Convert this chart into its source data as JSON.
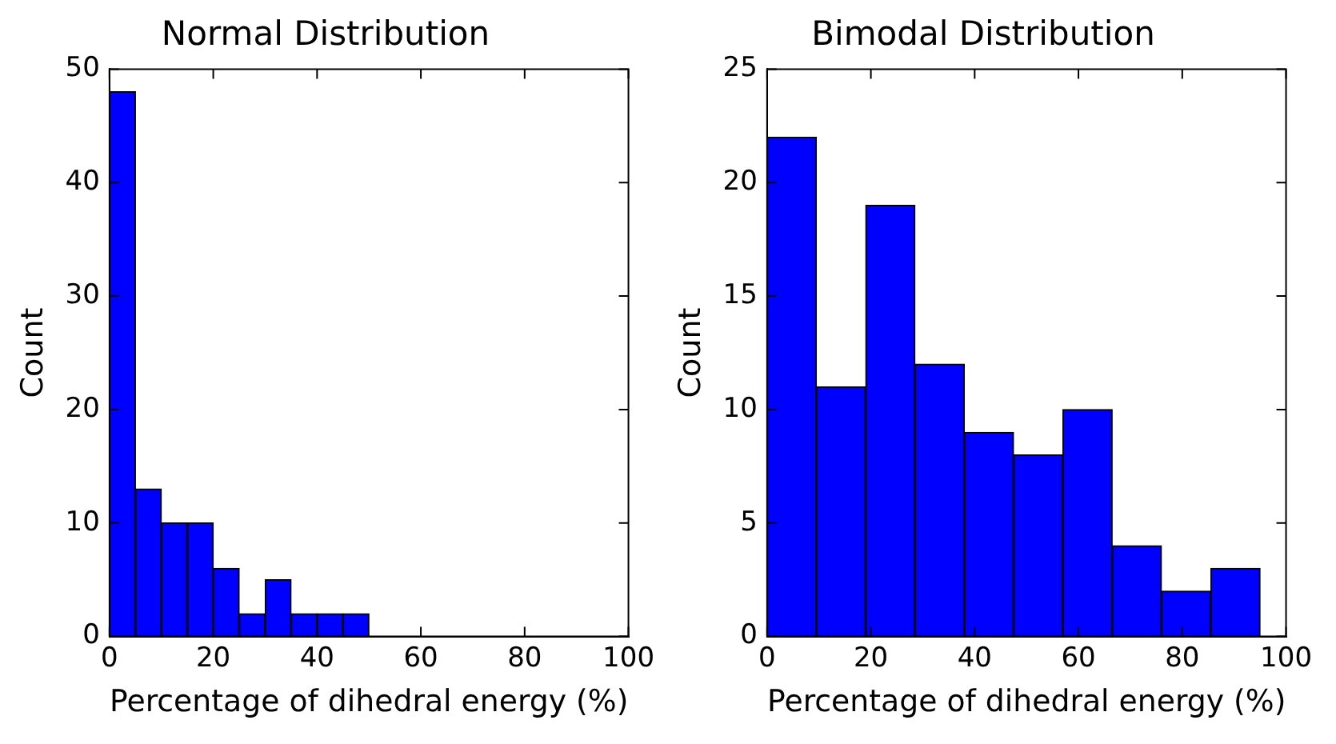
{
  "chart_data": [
    {
      "type": "histogram",
      "title": "Normal Distribution",
      "xlabel": "Percentage of dihedral energy (%)",
      "ylabel": "Count",
      "color": "#0000ff",
      "bins": [
        0,
        5,
        10,
        15,
        20,
        25,
        30,
        35,
        40,
        45,
        50
      ],
      "values": [
        48,
        13,
        10,
        10,
        6,
        2,
        5,
        2,
        2,
        2
      ],
      "xlim": [
        0,
        100
      ],
      "xticks": [
        0,
        20,
        40,
        60,
        80,
        100
      ],
      "ylim": [
        0,
        50
      ],
      "yticks": [
        0,
        10,
        20,
        30,
        40,
        50
      ],
      "grid": false,
      "legend": false
    },
    {
      "type": "histogram",
      "title": "Bimodal Distribution",
      "xlabel": "Percentage of dihedral energy (%)",
      "ylabel": "Count",
      "color": "#0000ff",
      "bins": [
        0,
        9.5,
        19,
        28.5,
        38,
        47.5,
        57,
        66.5,
        76,
        85.5,
        95
      ],
      "values": [
        22,
        11,
        19,
        12,
        9,
        8,
        10,
        4,
        2,
        3
      ],
      "xlim": [
        0,
        100
      ],
      "xticks": [
        0,
        20,
        40,
        60,
        80,
        100
      ],
      "ylim": [
        0,
        25
      ],
      "yticks": [
        0,
        5,
        10,
        15,
        20,
        25
      ],
      "grid": false,
      "legend": false
    }
  ]
}
